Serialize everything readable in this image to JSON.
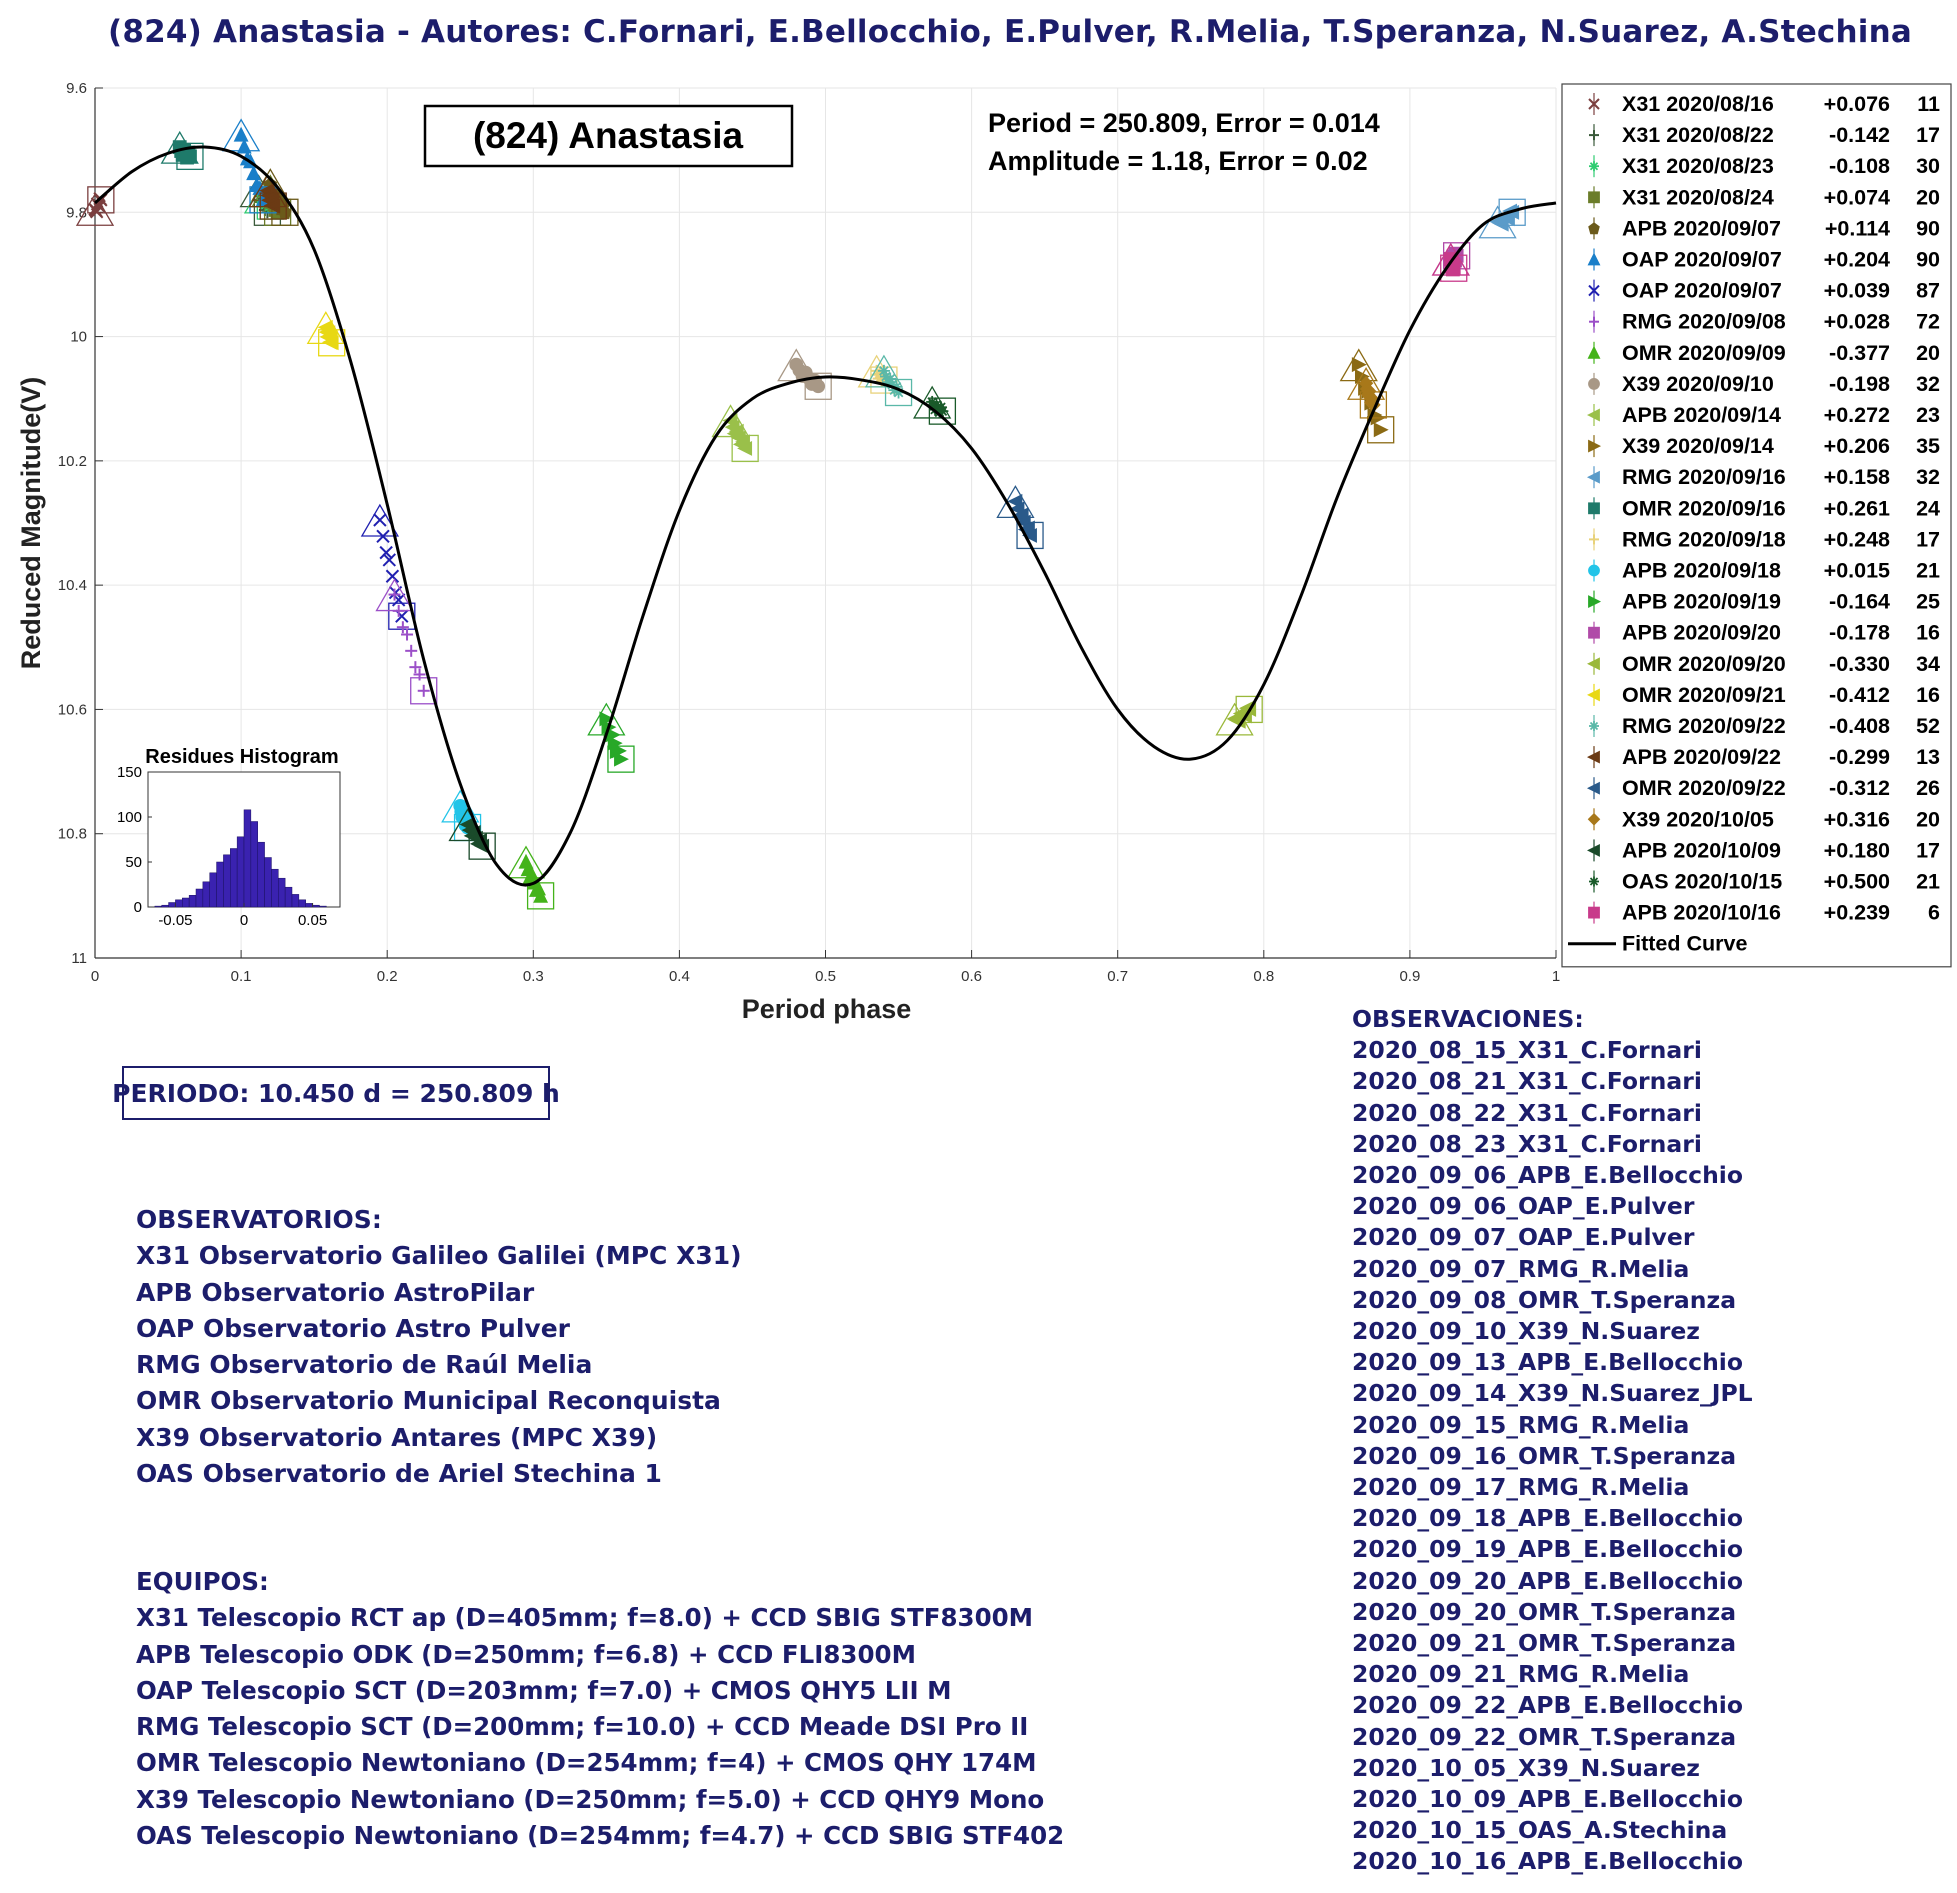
{
  "header": {
    "title": "(824) Anastasia - Autores: C.Fornari, E.Bellocchio, E.Pulver, R.Melia, T.Speranza, N.Suarez, A.Stechina"
  },
  "chart_data": {
    "type": "scatter",
    "title_box": "(824) Anastasia",
    "annotation_line1": "Period =  250.809, Error = 0.014",
    "annotation_line2": "Amplitude = 1.18, Error =  0.02",
    "xlabel": "Period phase",
    "ylabel": "Reduced Magnitude(V)",
    "xlim": [
      0,
      1
    ],
    "ylim": [
      9.6,
      11
    ],
    "y_reversed": true,
    "grid": true,
    "x_ticks": [
      "0",
      "0.1",
      "0.2",
      "0.3",
      "0.4",
      "0.5",
      "0.6",
      "0.7",
      "0.8",
      "0.9",
      "1"
    ],
    "y_ticks": [
      "9.6",
      "9.8",
      "10",
      "10.2",
      "10.4",
      "10.6",
      "10.8",
      "11"
    ],
    "legend_position": "top-right outside",
    "series": [
      {
        "name": "X31 2020/08/16",
        "offset": "+0.076",
        "n": "11",
        "color": "#7b3f3f",
        "marker": "x",
        "x": [
          0.0,
          0.004
        ],
        "y": [
          9.8,
          9.78
        ]
      },
      {
        "name": "X31 2020/08/22",
        "offset": "-0.142",
        "n": "17",
        "color": "#3a5a3a",
        "marker": "+",
        "x": [
          0.112,
          0.118
        ],
        "y": [
          9.77,
          9.8
        ]
      },
      {
        "name": "X31 2020/08/23",
        "offset": "-0.108",
        "n": "30",
        "color": "#2ecc71",
        "marker": "*",
        "x": [
          0.115,
          0.12
        ],
        "y": [
          9.78,
          9.79
        ]
      },
      {
        "name": "X31 2020/08/24",
        "offset": "+0.074",
        "n": "20",
        "color": "#6b7d2a",
        "marker": "s",
        "x": [
          0.12,
          0.125
        ],
        "y": [
          9.77,
          9.8
        ]
      },
      {
        "name": "APB 2020/09/07",
        "offset": "+0.114",
        "n": "90",
        "color": "#6b5a1a",
        "marker": "p",
        "x": [
          0.12,
          0.13
        ],
        "y": [
          9.76,
          9.8
        ]
      },
      {
        "name": "OAP 2020/09/07",
        "offset": "+0.204",
        "n": "90",
        "color": "#1a7fc9",
        "marker": "^",
        "x": [
          0.1,
          0.115
        ],
        "y": [
          9.68,
          9.78
        ]
      },
      {
        "name": "OAP 2020/09/07",
        "offset": "+0.039",
        "n": "87",
        "color": "#2020b0",
        "marker": "x",
        "x": [
          0.195,
          0.21
        ],
        "y": [
          10.3,
          10.45
        ]
      },
      {
        "name": "RMG 2020/09/08",
        "offset": "+0.028",
        "n": "72",
        "color": "#9b4fc8",
        "marker": "+",
        "x": [
          0.205,
          0.225
        ],
        "y": [
          10.42,
          10.57
        ]
      },
      {
        "name": "OMR 2020/09/09",
        "offset": "-0.377",
        "n": "20",
        "color": "#44b31a",
        "marker": "^",
        "x": [
          0.295,
          0.305
        ],
        "y": [
          10.85,
          10.9
        ]
      },
      {
        "name": "X39 2020/09/10",
        "offset": "-0.198",
        "n": "32",
        "color": "#a89886",
        "marker": "o",
        "x": [
          0.48,
          0.495
        ],
        "y": [
          10.05,
          10.08
        ]
      },
      {
        "name": "APB 2020/09/14",
        "offset": "+0.272",
        "n": "23",
        "color": "#9ac04a",
        "marker": "<",
        "x": [
          0.435,
          0.445
        ],
        "y": [
          10.14,
          10.18
        ]
      },
      {
        "name": "X39 2020/09/14",
        "offset": "+0.206",
        "n": "35",
        "color": "#8b6a14",
        "marker": ">",
        "x": [
          0.865,
          0.88
        ],
        "y": [
          10.05,
          10.15
        ]
      },
      {
        "name": "RMG 2020/09/16",
        "offset": "+0.158",
        "n": "32",
        "color": "#5a9bc9",
        "marker": "<",
        "x": [
          0.96,
          0.97
        ],
        "y": [
          9.82,
          9.8
        ]
      },
      {
        "name": "OMR 2020/09/16",
        "offset": "+0.261",
        "n": "24",
        "color": "#1e7a6a",
        "marker": "s",
        "x": [
          0.058,
          0.065
        ],
        "y": [
          9.7,
          9.71
        ]
      },
      {
        "name": "RMG 2020/09/18",
        "offset": "+0.248",
        "n": "17",
        "color": "#e8d27a",
        "marker": "+",
        "x": [
          0.535,
          0.54
        ],
        "y": [
          10.06,
          10.07
        ]
      },
      {
        "name": "APB 2020/09/18",
        "offset": "+0.015",
        "n": "21",
        "color": "#22c4e8",
        "marker": "o",
        "x": [
          0.25,
          0.255
        ],
        "y": [
          10.76,
          10.79
        ]
      },
      {
        "name": "APB 2020/09/19",
        "offset": "-0.164",
        "n": "25",
        "color": "#28a828",
        "marker": ">",
        "x": [
          0.35,
          0.36
        ],
        "y": [
          10.62,
          10.68
        ]
      },
      {
        "name": "APB 2020/09/20",
        "offset": "-0.178",
        "n": "16",
        "color": "#b04aa8",
        "marker": "s",
        "x": [
          0.928,
          0.932
        ],
        "y": [
          9.88,
          9.87
        ]
      },
      {
        "name": "OMR 2020/09/20",
        "offset": "-0.330",
        "n": "34",
        "color": "#9ab83a",
        "marker": "<",
        "x": [
          0.78,
          0.79
        ],
        "y": [
          10.62,
          10.6
        ]
      },
      {
        "name": "OMR 2020/09/21",
        "offset": "-0.412",
        "n": "16",
        "color": "#e8d814",
        "marker": "<",
        "x": [
          0.158,
          0.162
        ],
        "y": [
          9.99,
          10.01
        ]
      },
      {
        "name": "RMG 2020/09/22",
        "offset": "-0.408",
        "n": "52",
        "color": "#5ab8a8",
        "marker": "*",
        "x": [
          0.54,
          0.55
        ],
        "y": [
          10.06,
          10.09
        ]
      },
      {
        "name": "APB 2020/09/22",
        "offset": "-0.299",
        "n": "13",
        "color": "#6b3a14",
        "marker": "<",
        "x": [
          0.118,
          0.122
        ],
        "y": [
          9.77,
          9.79
        ]
      },
      {
        "name": "OMR 2020/09/22",
        "offset": "-0.312",
        "n": "26",
        "color": "#2a5a8a",
        "marker": "<",
        "x": [
          0.63,
          0.64
        ],
        "y": [
          10.27,
          10.32
        ]
      },
      {
        "name": "X39 2020/10/05",
        "offset": "+0.316",
        "n": "20",
        "color": "#a8781a",
        "marker": "d",
        "x": [
          0.87,
          0.875
        ],
        "y": [
          10.08,
          10.11
        ]
      },
      {
        "name": "APB 2020/10/09",
        "offset": "+0.180",
        "n": "17",
        "color": "#1a4a2a",
        "marker": "<",
        "x": [
          0.255,
          0.265
        ],
        "y": [
          10.79,
          10.82
        ]
      },
      {
        "name": "OAS 2020/10/15",
        "offset": "+0.500",
        "n": "21",
        "color": "#1a5a2a",
        "marker": "*",
        "x": [
          0.573,
          0.58
        ],
        "y": [
          10.11,
          10.12
        ]
      },
      {
        "name": "APB 2020/10/16",
        "offset": "+0.239",
        "n": "6",
        "color": "#c83a8a",
        "marker": "s",
        "x": [
          0.928,
          0.93
        ],
        "y": [
          9.88,
          9.89
        ]
      }
    ],
    "fitted_curve_label": "Fitted Curve",
    "fitted_curve": {
      "phase": [
        0,
        0.025,
        0.05,
        0.075,
        0.1,
        0.125,
        0.15,
        0.175,
        0.2,
        0.225,
        0.25,
        0.275,
        0.3,
        0.325,
        0.35,
        0.375,
        0.4,
        0.425,
        0.45,
        0.475,
        0.5,
        0.525,
        0.55,
        0.575,
        0.6,
        0.625,
        0.65,
        0.675,
        0.7,
        0.725,
        0.75,
        0.775,
        0.8,
        0.825,
        0.85,
        0.875,
        0.9,
        0.925,
        0.95,
        0.975,
        1
      ],
      "magnitude": [
        9.785,
        9.735,
        9.705,
        9.695,
        9.71,
        9.76,
        9.86,
        10.04,
        10.27,
        10.52,
        10.72,
        10.85,
        10.88,
        10.8,
        10.64,
        10.45,
        10.28,
        10.16,
        10.1,
        10.075,
        10.065,
        10.07,
        10.085,
        10.12,
        10.18,
        10.27,
        10.38,
        10.5,
        10.6,
        10.66,
        10.68,
        10.65,
        10.56,
        10.42,
        10.26,
        10.12,
        9.99,
        9.89,
        9.82,
        9.795,
        9.785
      ]
    },
    "inset_histogram": {
      "title": "Residues Histogram",
      "xlim": [
        -0.07,
        0.07
      ],
      "ylim": [
        0,
        150
      ],
      "x_ticks": [
        "-0.05",
        "0",
        "0.05"
      ],
      "y_ticks": [
        "0",
        "50",
        "100",
        "150"
      ],
      "bin_width": 0.005,
      "bin_centers": [
        -0.0625,
        -0.0575,
        -0.0525,
        -0.0475,
        -0.0425,
        -0.0375,
        -0.0325,
        -0.0275,
        -0.0225,
        -0.0175,
        -0.0125,
        -0.0075,
        -0.0025,
        0.0025,
        0.0075,
        0.0125,
        0.0175,
        0.0225,
        0.0275,
        0.0325,
        0.0375,
        0.0425,
        0.0475,
        0.0525,
        0.0575
      ],
      "counts": [
        1,
        2,
        5,
        8,
        10,
        13,
        20,
        28,
        38,
        50,
        58,
        65,
        78,
        108,
        95,
        72,
        55,
        42,
        32,
        22,
        14,
        8,
        4,
        2,
        1
      ],
      "color": "#3a22b0"
    }
  },
  "period_box": "PERIODO: 10.450 d = 250.809 h",
  "observatorios": {
    "heading": "OBSERVATORIOS:",
    "lines": [
      "X31 Observatorio Galileo Galilei (MPC X31)",
      "APB Observatorio AstroPilar",
      "OAP Observatorio Astro Pulver",
      "RMG Observatorio de Raúl Melia",
      "OMR Observatorio Municipal Reconquista",
      "X39 Observatorio Antares (MPC X39)",
      "OAS Observatorio de Ariel Stechina 1"
    ]
  },
  "equipos": {
    "heading": "EQUIPOS:",
    "lines": [
      "X31 Telescopio RCT ap (D=405mm; f=8.0) + CCD SBIG STF8300M",
      "APB Telescopio ODK (D=250mm; f=6.8) + CCD FLI8300M",
      "OAP Telescopio SCT (D=203mm; f=7.0) + CMOS QHY5 LII M",
      "RMG Telescopio SCT (D=200mm; f=10.0) + CCD Meade DSI Pro II",
      "OMR Telescopio Newtoniano (D=254mm; f=4) + CMOS QHY 174M",
      "X39 Telescopio Newtoniano (D=250mm; f=5.0) + CCD QHY9 Mono",
      "OAS Telescopio Newtoniano (D=254mm; f=4.7) + CCD SBIG STF402"
    ]
  },
  "observaciones": {
    "heading": "OBSERVACIONES:",
    "lines": [
      "2020_08_15_X31_C.Fornari",
      "2020_08_21_X31_C.Fornari",
      "2020_08_22_X31_C.Fornari",
      "2020_08_23_X31_C.Fornari",
      "2020_09_06_APB_E.Bellocchio",
      "2020_09_06_OAP_E.Pulver",
      "2020_09_07_OAP_E.Pulver",
      "2020_09_07_RMG_R.Melia",
      "2020_09_08_OMR_T.Speranza",
      "2020_09_10_X39_N.Suarez",
      "2020_09_13_APB_E.Bellocchio",
      "2020_09_14_X39_N.Suarez_JPL",
      "2020_09_15_RMG_R.Melia",
      "2020_09_16_OMR_T.Speranza",
      "2020_09_17_RMG_R.Melia",
      "2020_09_18_APB_E.Bellocchio",
      "2020_09_19_APB_E.Bellocchio",
      "2020_09_20_APB_E.Bellocchio",
      "2020_09_20_OMR_T.Speranza",
      "2020_09_21_OMR_T.Speranza",
      "2020_09_21_RMG_R.Melia",
      "2020_09_22_APB_E.Bellocchio",
      "2020_09_22_OMR_T.Speranza",
      "2020_10_05_X39_N.Suarez",
      "2020_10_09_APB_E.Bellocchio",
      "2020_10_15_OAS_A.Stechina",
      "2020_10_16_APB_E.Bellocchio"
    ]
  }
}
